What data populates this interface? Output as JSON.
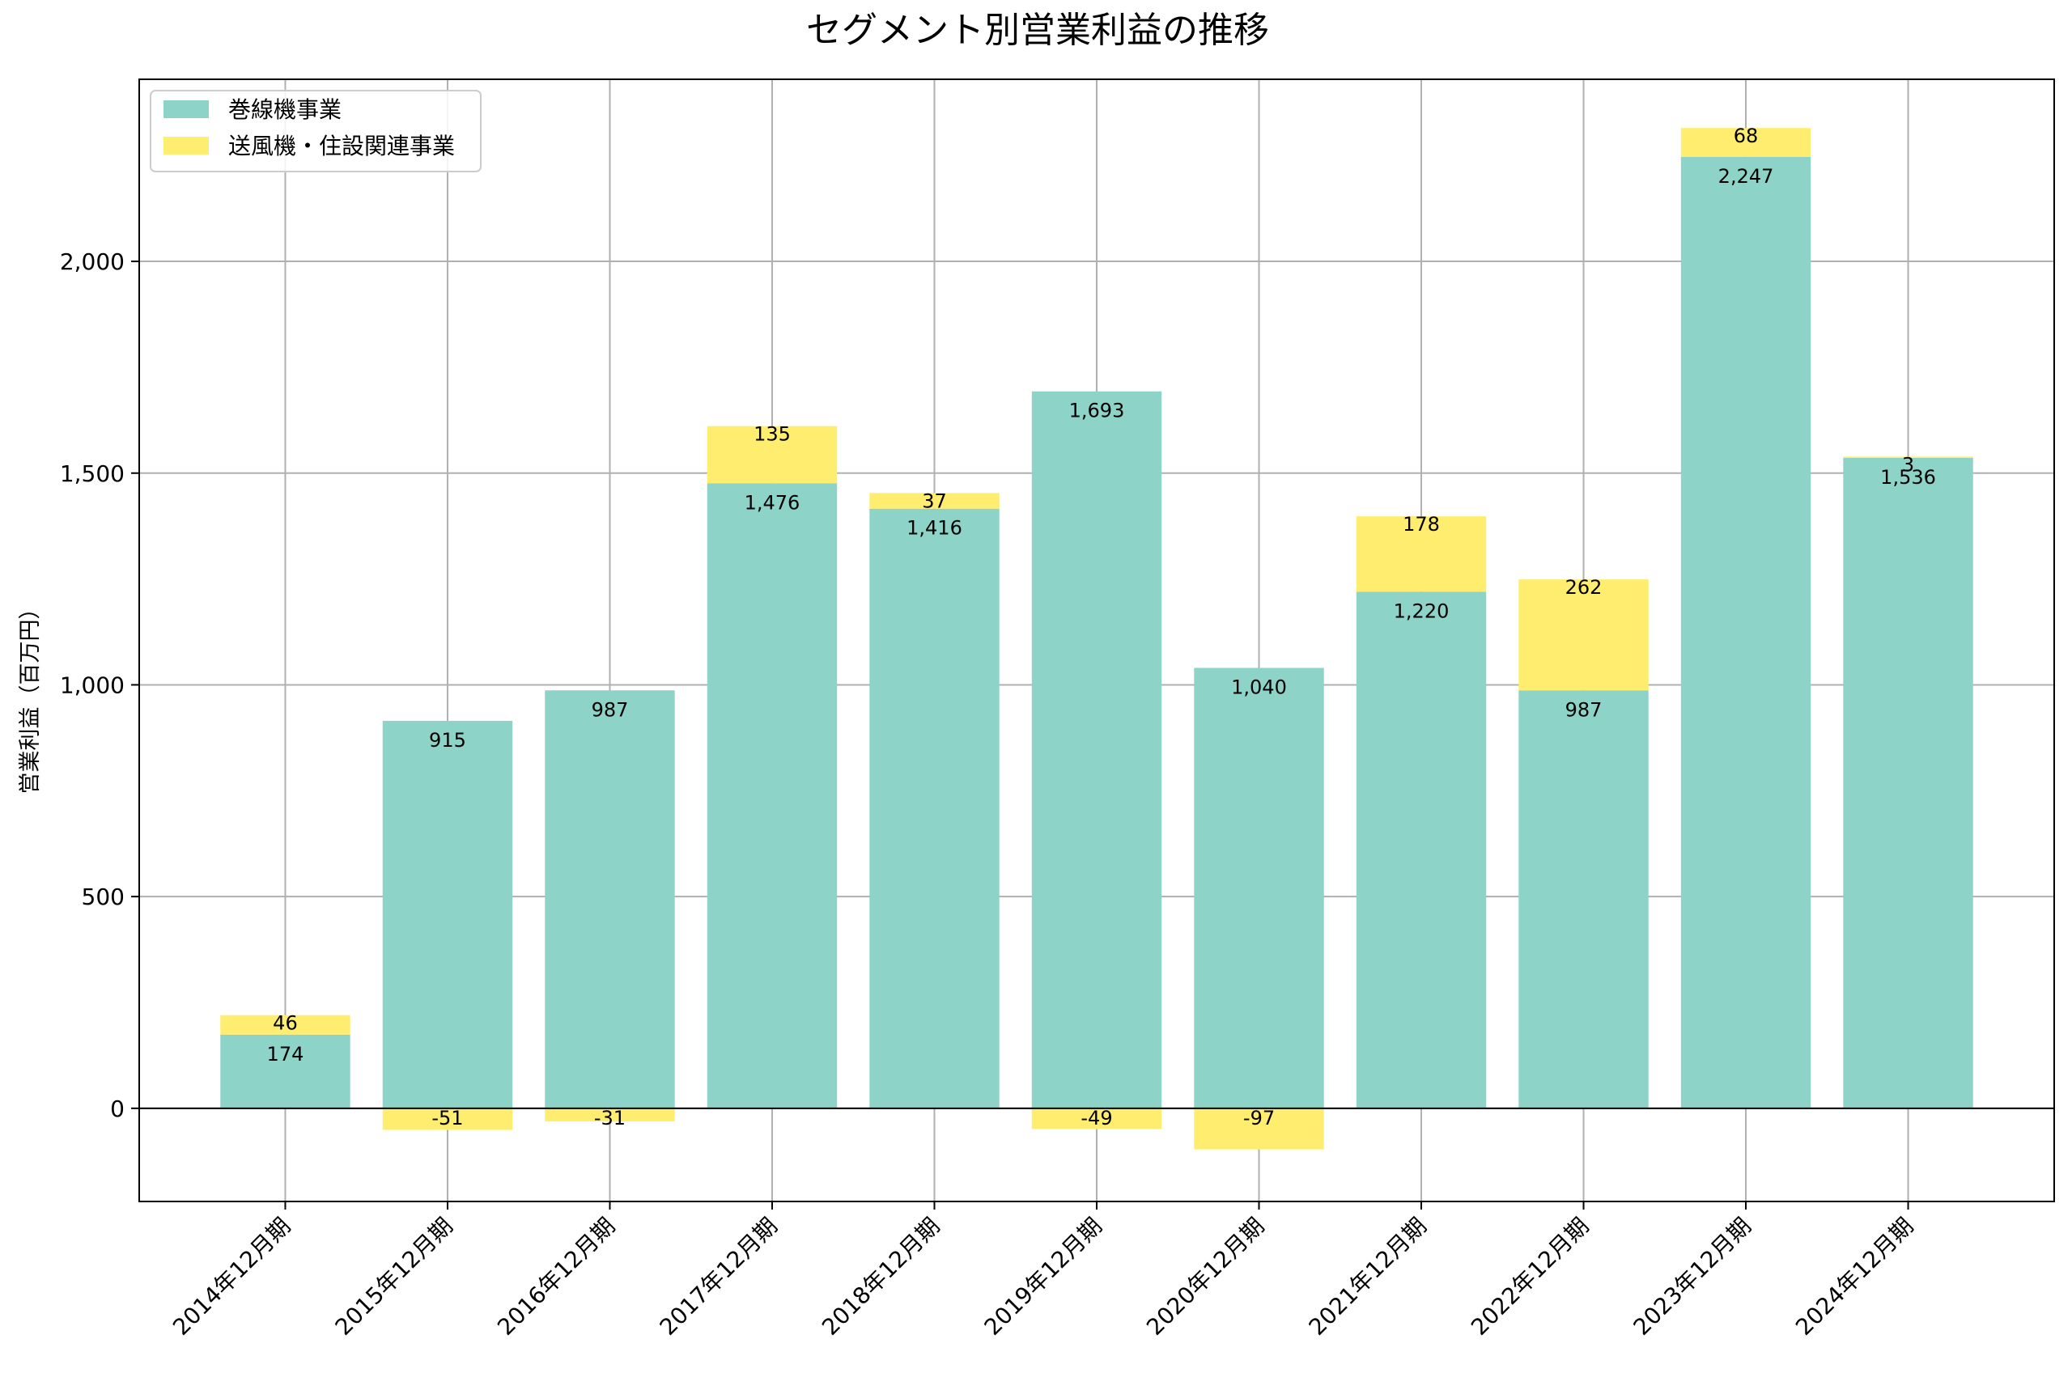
{
  "chart_data": {
    "type": "bar",
    "stacked": true,
    "title": "セグメント別営業利益の推移",
    "ylabel": "営業利益（百万円）",
    "xlabel": "",
    "ylim": [
      -220,
      2430
    ],
    "yticks": [
      0,
      500,
      1000,
      1500,
      2000
    ],
    "ytick_labels": [
      "0",
      "500",
      "1,000",
      "1,500",
      "2,000"
    ],
    "grid": true,
    "legend_position": "top-left",
    "categories": [
      "2014年12月期",
      "2015年12月期",
      "2016年12月期",
      "2017年12月期",
      "2018年12月期",
      "2019年12月期",
      "2020年12月期",
      "2021年12月期",
      "2022年12月期",
      "2023年12月期",
      "2024年12月期"
    ],
    "series": [
      {
        "name": "巻線機事業",
        "color": "#8dd3c7",
        "values": [
          174,
          915,
          987,
          1476,
          1416,
          1693,
          1040,
          1220,
          987,
          2247,
          1536
        ],
        "labels": [
          "174",
          "915",
          "987",
          "1,476",
          "1,416",
          "1,693",
          "1,040",
          "1,220",
          "987",
          "2,247",
          "1,536"
        ]
      },
      {
        "name": "送風機・住設関連事業",
        "color": "#ffed6f",
        "values": [
          46,
          -51,
          -31,
          135,
          37,
          -49,
          -97,
          178,
          262,
          68,
          3
        ],
        "labels": [
          "46",
          "-51",
          "-31",
          "135",
          "37",
          "-49",
          "-97",
          "178",
          "262",
          "68",
          "3"
        ]
      }
    ]
  }
}
